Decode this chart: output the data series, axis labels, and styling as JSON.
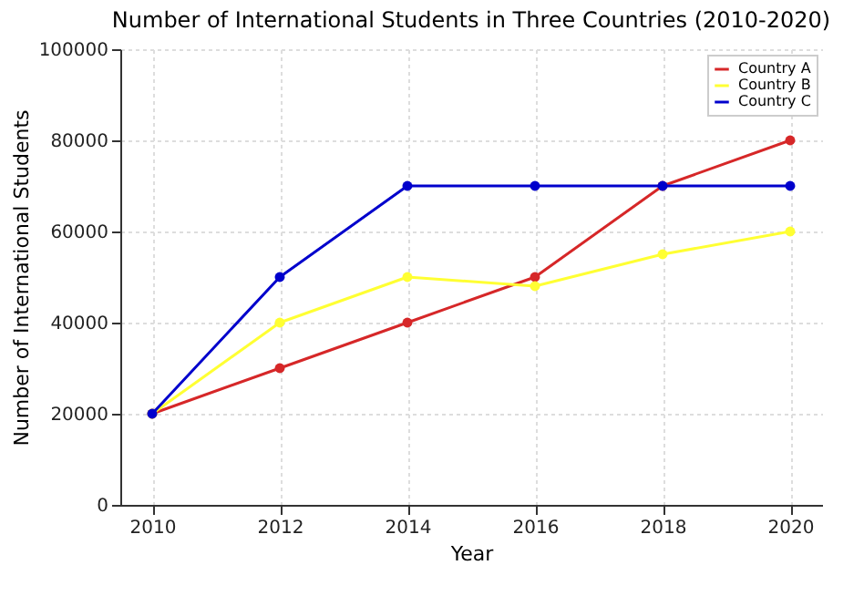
{
  "chart_data": {
    "type": "line",
    "title": "Number of International Students in Three Countries (2010-2020)",
    "xlabel": "Year",
    "ylabel": "Number of International Students",
    "x": [
      2010,
      2012,
      2014,
      2016,
      2018,
      2020
    ],
    "series": [
      {
        "name": "Country A",
        "color": "#d62728",
        "values": [
          20000,
          30000,
          40000,
          50000,
          70000,
          80000
        ]
      },
      {
        "name": "Country B",
        "color": "#ffff33",
        "values": [
          20000,
          40000,
          50000,
          48000,
          55000,
          60000
        ]
      },
      {
        "name": "Country C",
        "color": "#0000cc",
        "values": [
          20000,
          50000,
          70000,
          70000,
          70000,
          70000
        ]
      }
    ],
    "xlim": [
      2009.5,
      2020.5
    ],
    "xticks": [
      2010,
      2012,
      2014,
      2016,
      2018,
      2020
    ],
    "ylim": [
      0,
      100000
    ],
    "yticks": [
      0,
      20000,
      40000,
      60000,
      80000,
      100000
    ],
    "grid": true,
    "legend": "top right",
    "marker": "circle",
    "line_style": "solid"
  }
}
